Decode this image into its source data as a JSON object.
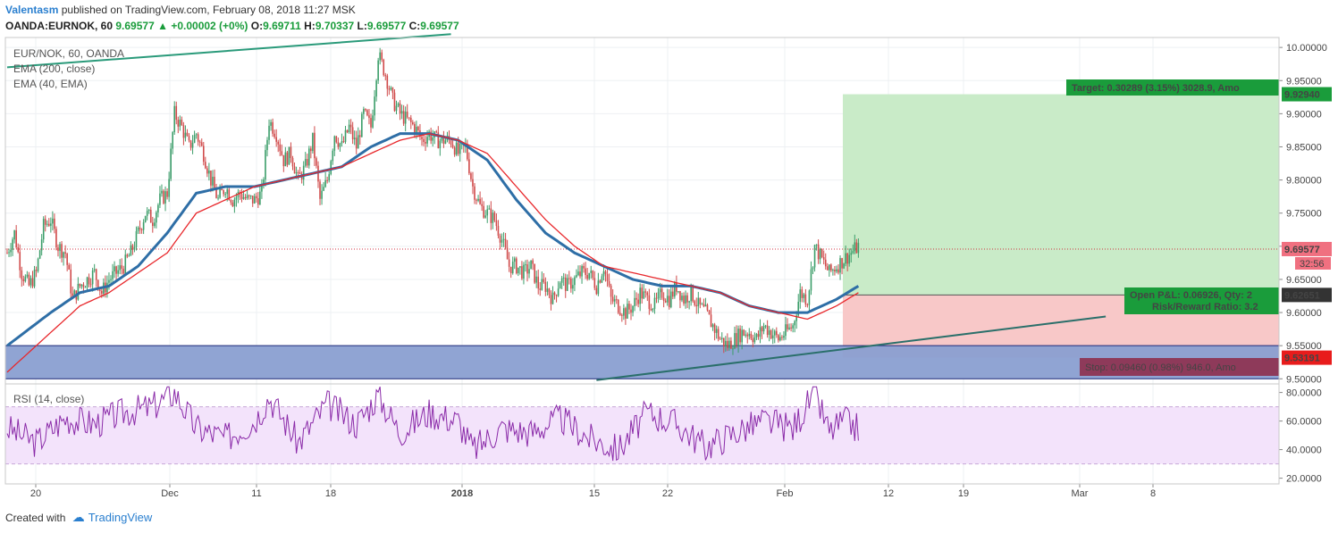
{
  "header": {
    "author": "Valentasm",
    "published": "published on TradingView.com, February 08, 2018 11:27 MSK",
    "symbol_line": "OANDA:EURNOK, 60",
    "last": "9.69577",
    "change": "+0.00002 (+0%)",
    "open_label": "O:",
    "open": "9.69711",
    "high_label": "H:",
    "high": "9.70337",
    "low_label": "L:",
    "low": "9.69577",
    "close_label": "C:",
    "close": "9.69577"
  },
  "legend": {
    "symbol": "EUR/NOK, 60, OANDA",
    "ema200": "EMA (200, close)",
    "ema40": "EMA (40, EMA)",
    "rsi": "RSI (14, close)"
  },
  "annotations": {
    "target": "Target: 0.30289 (3.15%) 3028.9, Amo",
    "pnl": "Open P&L: 0.06926, Qty: 2",
    "rr": "Risk/Reward Ratio: 3.2",
    "stop": "Stop: 0.09460 (0.98%) 946.0, Amo"
  },
  "price_tags": {
    "target": "9.92940",
    "last": "9.69577",
    "countdown": "32:56",
    "entry": "9.62651",
    "stop": "9.53191"
  },
  "footer": {
    "created": "Created with",
    "brand": "TradingView"
  },
  "colors": {
    "ema200": "#2e6ea6",
    "ema40": "#e8272b",
    "trend": "#2a9a7a",
    "rsi": "#8a2aa8",
    "zone": "#8a9fd1",
    "target": "#c9ebc8",
    "stop_fill": "#f8c8c8",
    "tag_green": "#1a9c3b",
    "tag_red": "#e81c1c",
    "tag_stop": "#8e3a5a",
    "tag_last": "#f07080"
  },
  "chart_data": {
    "type": "candlestick",
    "price_axis": {
      "ticks": [
        "10.00000",
        "9.95000",
        "9.90000",
        "9.85000",
        "9.80000",
        "9.75000",
        "9.70000",
        "9.65000",
        "9.60000",
        "9.55000",
        "9.50000"
      ],
      "range": [
        9.495,
        10.015
      ]
    },
    "rsi_axis": {
      "ticks": [
        "80.0000",
        "60.0000",
        "40.0000",
        "20.0000"
      ],
      "range": [
        16,
        86
      ],
      "bands": [
        70,
        30
      ]
    },
    "time_axis": [
      "20",
      "Dec",
      "11",
      "18",
      "2018",
      "15",
      "22",
      "Feb",
      "12",
      "19",
      "Mar",
      "8"
    ],
    "price_anchors": [
      [
        0,
        9.69
      ],
      [
        1,
        9.72
      ],
      [
        2,
        9.66
      ],
      [
        3,
        9.64
      ],
      [
        4,
        9.66
      ],
      [
        5,
        9.73
      ],
      [
        6,
        9.74
      ],
      [
        7,
        9.7
      ],
      [
        8,
        9.69
      ],
      [
        9,
        9.62
      ],
      [
        10,
        9.64
      ],
      [
        11,
        9.65
      ],
      [
        12,
        9.66
      ],
      [
        13,
        9.63
      ],
      [
        14,
        9.65
      ],
      [
        15,
        9.66
      ],
      [
        16,
        9.67
      ],
      [
        17,
        9.69
      ],
      [
        18,
        9.72
      ],
      [
        19,
        9.75
      ],
      [
        20,
        9.74
      ],
      [
        21,
        9.77
      ],
      [
        22,
        9.78
      ],
      [
        23,
        9.9
      ],
      [
        24,
        9.88
      ],
      [
        25,
        9.85
      ],
      [
        26,
        9.87
      ],
      [
        27,
        9.84
      ],
      [
        28,
        9.8
      ],
      [
        29,
        9.77
      ],
      [
        30,
        9.79
      ],
      [
        31,
        9.77
      ],
      [
        32,
        9.78
      ],
      [
        33,
        9.77
      ],
      [
        34,
        9.77
      ],
      [
        35,
        9.78
      ],
      [
        36,
        9.89
      ],
      [
        37,
        9.87
      ],
      [
        38,
        9.83
      ],
      [
        39,
        9.84
      ],
      [
        40,
        9.8
      ],
      [
        41,
        9.82
      ],
      [
        42,
        9.86
      ],
      [
        43,
        9.77
      ],
      [
        44,
        9.8
      ],
      [
        45,
        9.87
      ],
      [
        46,
        9.85
      ],
      [
        47,
        9.88
      ],
      [
        48,
        9.85
      ],
      [
        49,
        9.9
      ],
      [
        50,
        9.88
      ],
      [
        51,
        9.99
      ],
      [
        52,
        9.96
      ],
      [
        53,
        9.92
      ],
      [
        54,
        9.9
      ],
      [
        55,
        9.89
      ],
      [
        56,
        9.88
      ],
      [
        57,
        9.86
      ],
      [
        58,
        9.87
      ],
      [
        59,
        9.86
      ],
      [
        60,
        9.86
      ],
      [
        61,
        9.86
      ],
      [
        62,
        9.84
      ],
      [
        63,
        9.85
      ],
      [
        64,
        9.79
      ],
      [
        65,
        9.76
      ],
      [
        66,
        9.75
      ],
      [
        67,
        9.74
      ],
      [
        68,
        9.71
      ],
      [
        69,
        9.67
      ],
      [
        70,
        9.67
      ],
      [
        71,
        9.66
      ],
      [
        72,
        9.67
      ],
      [
        73,
        9.64
      ],
      [
        74,
        9.64
      ],
      [
        75,
        9.62
      ],
      [
        76,
        9.65
      ],
      [
        77,
        9.64
      ],
      [
        78,
        9.65
      ],
      [
        79,
        9.66
      ],
      [
        80,
        9.66
      ],
      [
        81,
        9.64
      ],
      [
        82,
        9.67
      ],
      [
        83,
        9.62
      ],
      [
        84,
        9.61
      ],
      [
        85,
        9.6
      ],
      [
        86,
        9.61
      ],
      [
        87,
        9.63
      ],
      [
        88,
        9.62
      ],
      [
        89,
        9.61
      ],
      [
        90,
        9.63
      ],
      [
        91,
        9.62
      ],
      [
        92,
        9.64
      ],
      [
        93,
        9.62
      ],
      [
        94,
        9.63
      ],
      [
        95,
        9.61
      ],
      [
        96,
        9.6
      ],
      [
        97,
        9.58
      ],
      [
        98,
        9.56
      ],
      [
        99,
        9.55
      ],
      [
        100,
        9.56
      ],
      [
        101,
        9.57
      ],
      [
        102,
        9.57
      ],
      [
        103,
        9.56
      ],
      [
        104,
        9.58
      ],
      [
        105,
        9.57
      ],
      [
        106,
        9.56
      ],
      [
        107,
        9.57
      ],
      [
        108,
        9.58
      ],
      [
        109,
        9.63
      ],
      [
        110,
        9.62
      ],
      [
        111,
        9.7
      ],
      [
        112,
        9.68
      ],
      [
        113,
        9.66
      ],
      [
        114,
        9.67
      ],
      [
        115,
        9.68
      ],
      [
        116,
        9.69
      ],
      [
        117,
        9.7
      ]
    ],
    "ema200_anchors": [
      [
        0,
        9.55
      ],
      [
        6,
        9.6
      ],
      [
        10,
        9.63
      ],
      [
        14,
        9.64
      ],
      [
        18,
        9.67
      ],
      [
        22,
        9.72
      ],
      [
        26,
        9.78
      ],
      [
        30,
        9.79
      ],
      [
        34,
        9.79
      ],
      [
        38,
        9.8
      ],
      [
        42,
        9.81
      ],
      [
        46,
        9.82
      ],
      [
        50,
        9.85
      ],
      [
        54,
        9.87
      ],
      [
        58,
        9.87
      ],
      [
        62,
        9.86
      ],
      [
        66,
        9.83
      ],
      [
        70,
        9.77
      ],
      [
        74,
        9.72
      ],
      [
        78,
        9.69
      ],
      [
        82,
        9.67
      ],
      [
        86,
        9.65
      ],
      [
        90,
        9.64
      ],
      [
        94,
        9.64
      ],
      [
        98,
        9.63
      ],
      [
        102,
        9.61
      ],
      [
        106,
        9.6
      ],
      [
        110,
        9.6
      ],
      [
        114,
        9.62
      ],
      [
        117,
        9.64
      ]
    ],
    "ema40_anchors": [
      [
        0,
        9.51
      ],
      [
        6,
        9.57
      ],
      [
        10,
        9.61
      ],
      [
        14,
        9.63
      ],
      [
        18,
        9.66
      ],
      [
        22,
        9.69
      ],
      [
        26,
        9.75
      ],
      [
        30,
        9.77
      ],
      [
        34,
        9.79
      ],
      [
        38,
        9.8
      ],
      [
        42,
        9.81
      ],
      [
        46,
        9.82
      ],
      [
        50,
        9.84
      ],
      [
        54,
        9.86
      ],
      [
        58,
        9.87
      ],
      [
        62,
        9.86
      ],
      [
        66,
        9.84
      ],
      [
        70,
        9.79
      ],
      [
        74,
        9.74
      ],
      [
        78,
        9.7
      ],
      [
        82,
        9.67
      ],
      [
        86,
        9.66
      ],
      [
        90,
        9.65
      ],
      [
        94,
        9.64
      ],
      [
        98,
        9.63
      ],
      [
        102,
        9.61
      ],
      [
        106,
        9.6
      ],
      [
        110,
        9.59
      ],
      [
        114,
        9.61
      ],
      [
        117,
        9.63
      ]
    ],
    "rsi_anchors": [
      [
        0,
        55
      ],
      [
        4,
        45
      ],
      [
        8,
        62
      ],
      [
        12,
        58
      ],
      [
        16,
        66
      ],
      [
        20,
        70
      ],
      [
        23,
        80
      ],
      [
        26,
        55
      ],
      [
        30,
        48
      ],
      [
        34,
        60
      ],
      [
        36,
        77
      ],
      [
        40,
        45
      ],
      [
        44,
        72
      ],
      [
        48,
        58
      ],
      [
        51,
        78
      ],
      [
        54,
        52
      ],
      [
        58,
        66
      ],
      [
        62,
        60
      ],
      [
        64,
        40
      ],
      [
        68,
        55
      ],
      [
        72,
        52
      ],
      [
        76,
        62
      ],
      [
        80,
        48
      ],
      [
        84,
        40
      ],
      [
        88,
        66
      ],
      [
        92,
        58
      ],
      [
        96,
        42
      ],
      [
        100,
        52
      ],
      [
        104,
        60
      ],
      [
        108,
        55
      ],
      [
        111,
        80
      ],
      [
        113,
        52
      ],
      [
        115,
        60
      ],
      [
        117,
        55
      ]
    ],
    "levels": {
      "target": 9.9294,
      "entry": 9.62651,
      "stop": 9.53191,
      "last": 9.69577,
      "zone_top": 9.55,
      "zone_bottom": 9.5
    },
    "trendlines": [
      {
        "from": [
          0,
          9.97
        ],
        "to": [
          61,
          10.02
        ]
      },
      {
        "from": [
          81,
          9.498
        ],
        "to": [
          151,
          9.594
        ]
      }
    ]
  }
}
